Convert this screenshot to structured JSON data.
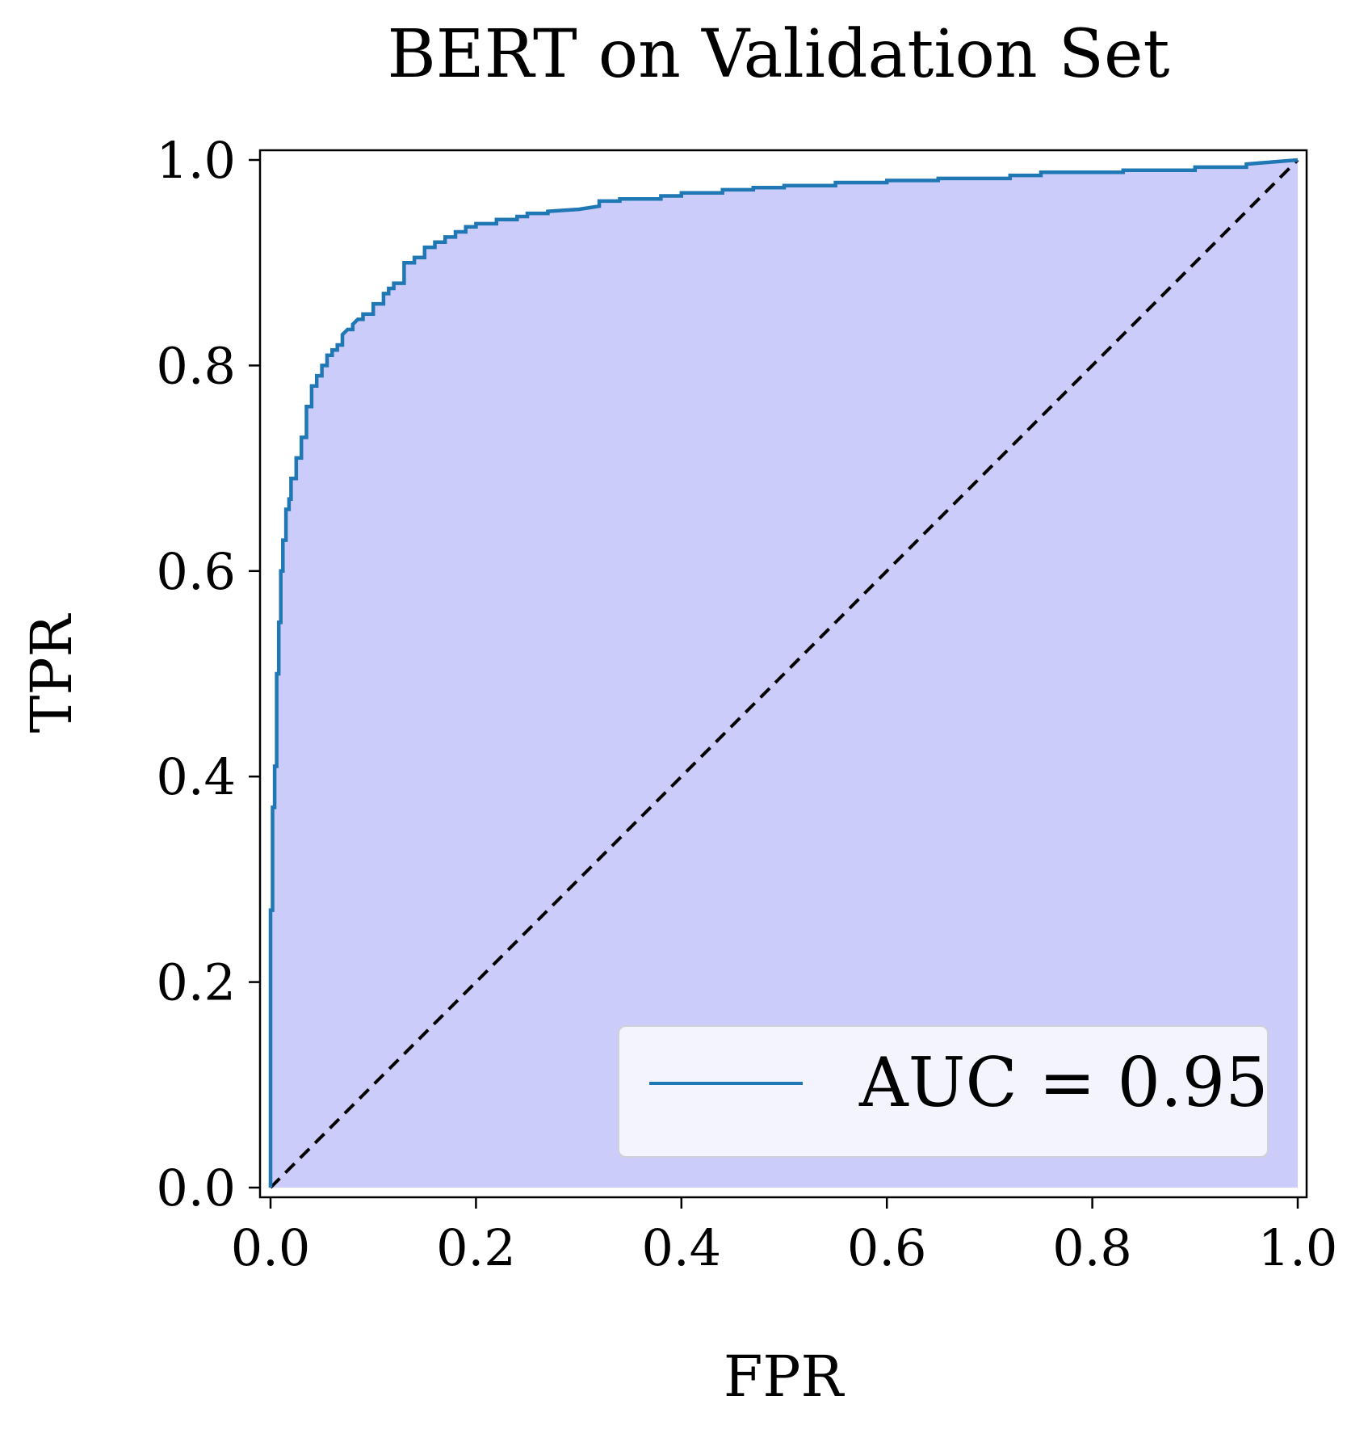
{
  "chart_data": {
    "type": "line",
    "title": "BERT on Validation Set",
    "xlabel": "FPR",
    "ylabel": "TPR",
    "xlim": [
      0.0,
      1.0
    ],
    "ylim": [
      0.0,
      1.0
    ],
    "x_ticks": [
      "0.0",
      "0.2",
      "0.4",
      "0.6",
      "0.8",
      "1.0"
    ],
    "y_ticks": [
      "0.0",
      "0.2",
      "0.4",
      "0.6",
      "0.8",
      "1.0"
    ],
    "grid": false,
    "legend_position": "bottom-right",
    "series": [
      {
        "name": "AUC = 0.95",
        "color": "#1f77b4",
        "fill_color": "#ccccfa",
        "x": [
          0.0,
          0.0,
          0.002,
          0.002,
          0.004,
          0.004,
          0.006,
          0.006,
          0.008,
          0.008,
          0.01,
          0.01,
          0.012,
          0.012,
          0.015,
          0.015,
          0.018,
          0.018,
          0.02,
          0.02,
          0.025,
          0.025,
          0.03,
          0.03,
          0.035,
          0.035,
          0.04,
          0.04,
          0.045,
          0.045,
          0.05,
          0.05,
          0.055,
          0.055,
          0.06,
          0.06,
          0.065,
          0.065,
          0.07,
          0.07,
          0.075,
          0.08,
          0.08,
          0.085,
          0.09,
          0.09,
          0.1,
          0.1,
          0.11,
          0.11,
          0.115,
          0.115,
          0.12,
          0.12,
          0.13,
          0.13,
          0.14,
          0.14,
          0.15,
          0.15,
          0.16,
          0.16,
          0.17,
          0.17,
          0.18,
          0.18,
          0.19,
          0.19,
          0.2,
          0.2,
          0.22,
          0.22,
          0.24,
          0.24,
          0.25,
          0.25,
          0.27,
          0.27,
          0.3,
          0.32,
          0.32,
          0.34,
          0.34,
          0.38,
          0.38,
          0.4,
          0.4,
          0.44,
          0.44,
          0.47,
          0.47,
          0.5,
          0.5,
          0.55,
          0.55,
          0.6,
          0.6,
          0.65,
          0.65,
          0.72,
          0.72,
          0.75,
          0.75,
          0.83,
          0.83,
          0.9,
          0.9,
          0.95,
          0.95,
          1.0
        ],
        "y": [
          0.0,
          0.27,
          0.27,
          0.37,
          0.37,
          0.41,
          0.41,
          0.5,
          0.5,
          0.55,
          0.55,
          0.6,
          0.6,
          0.63,
          0.63,
          0.66,
          0.66,
          0.67,
          0.67,
          0.69,
          0.69,
          0.71,
          0.71,
          0.73,
          0.73,
          0.76,
          0.76,
          0.78,
          0.78,
          0.79,
          0.79,
          0.8,
          0.8,
          0.81,
          0.81,
          0.815,
          0.815,
          0.82,
          0.82,
          0.83,
          0.835,
          0.835,
          0.84,
          0.845,
          0.845,
          0.85,
          0.85,
          0.86,
          0.86,
          0.87,
          0.87,
          0.875,
          0.875,
          0.88,
          0.88,
          0.9,
          0.9,
          0.905,
          0.905,
          0.915,
          0.915,
          0.92,
          0.92,
          0.925,
          0.925,
          0.93,
          0.93,
          0.935,
          0.935,
          0.938,
          0.938,
          0.942,
          0.942,
          0.945,
          0.945,
          0.948,
          0.948,
          0.95,
          0.952,
          0.955,
          0.96,
          0.96,
          0.962,
          0.962,
          0.965,
          0.965,
          0.968,
          0.968,
          0.971,
          0.971,
          0.973,
          0.973,
          0.975,
          0.975,
          0.978,
          0.978,
          0.98,
          0.98,
          0.982,
          0.982,
          0.985,
          0.985,
          0.988,
          0.988,
          0.99,
          0.99,
          0.993,
          0.993,
          0.996,
          1.0
        ]
      },
      {
        "name": "",
        "color": "#000000",
        "line_style": "dashed",
        "x": [
          0.0,
          1.0
        ],
        "y": [
          0.0,
          1.0
        ]
      }
    ]
  }
}
